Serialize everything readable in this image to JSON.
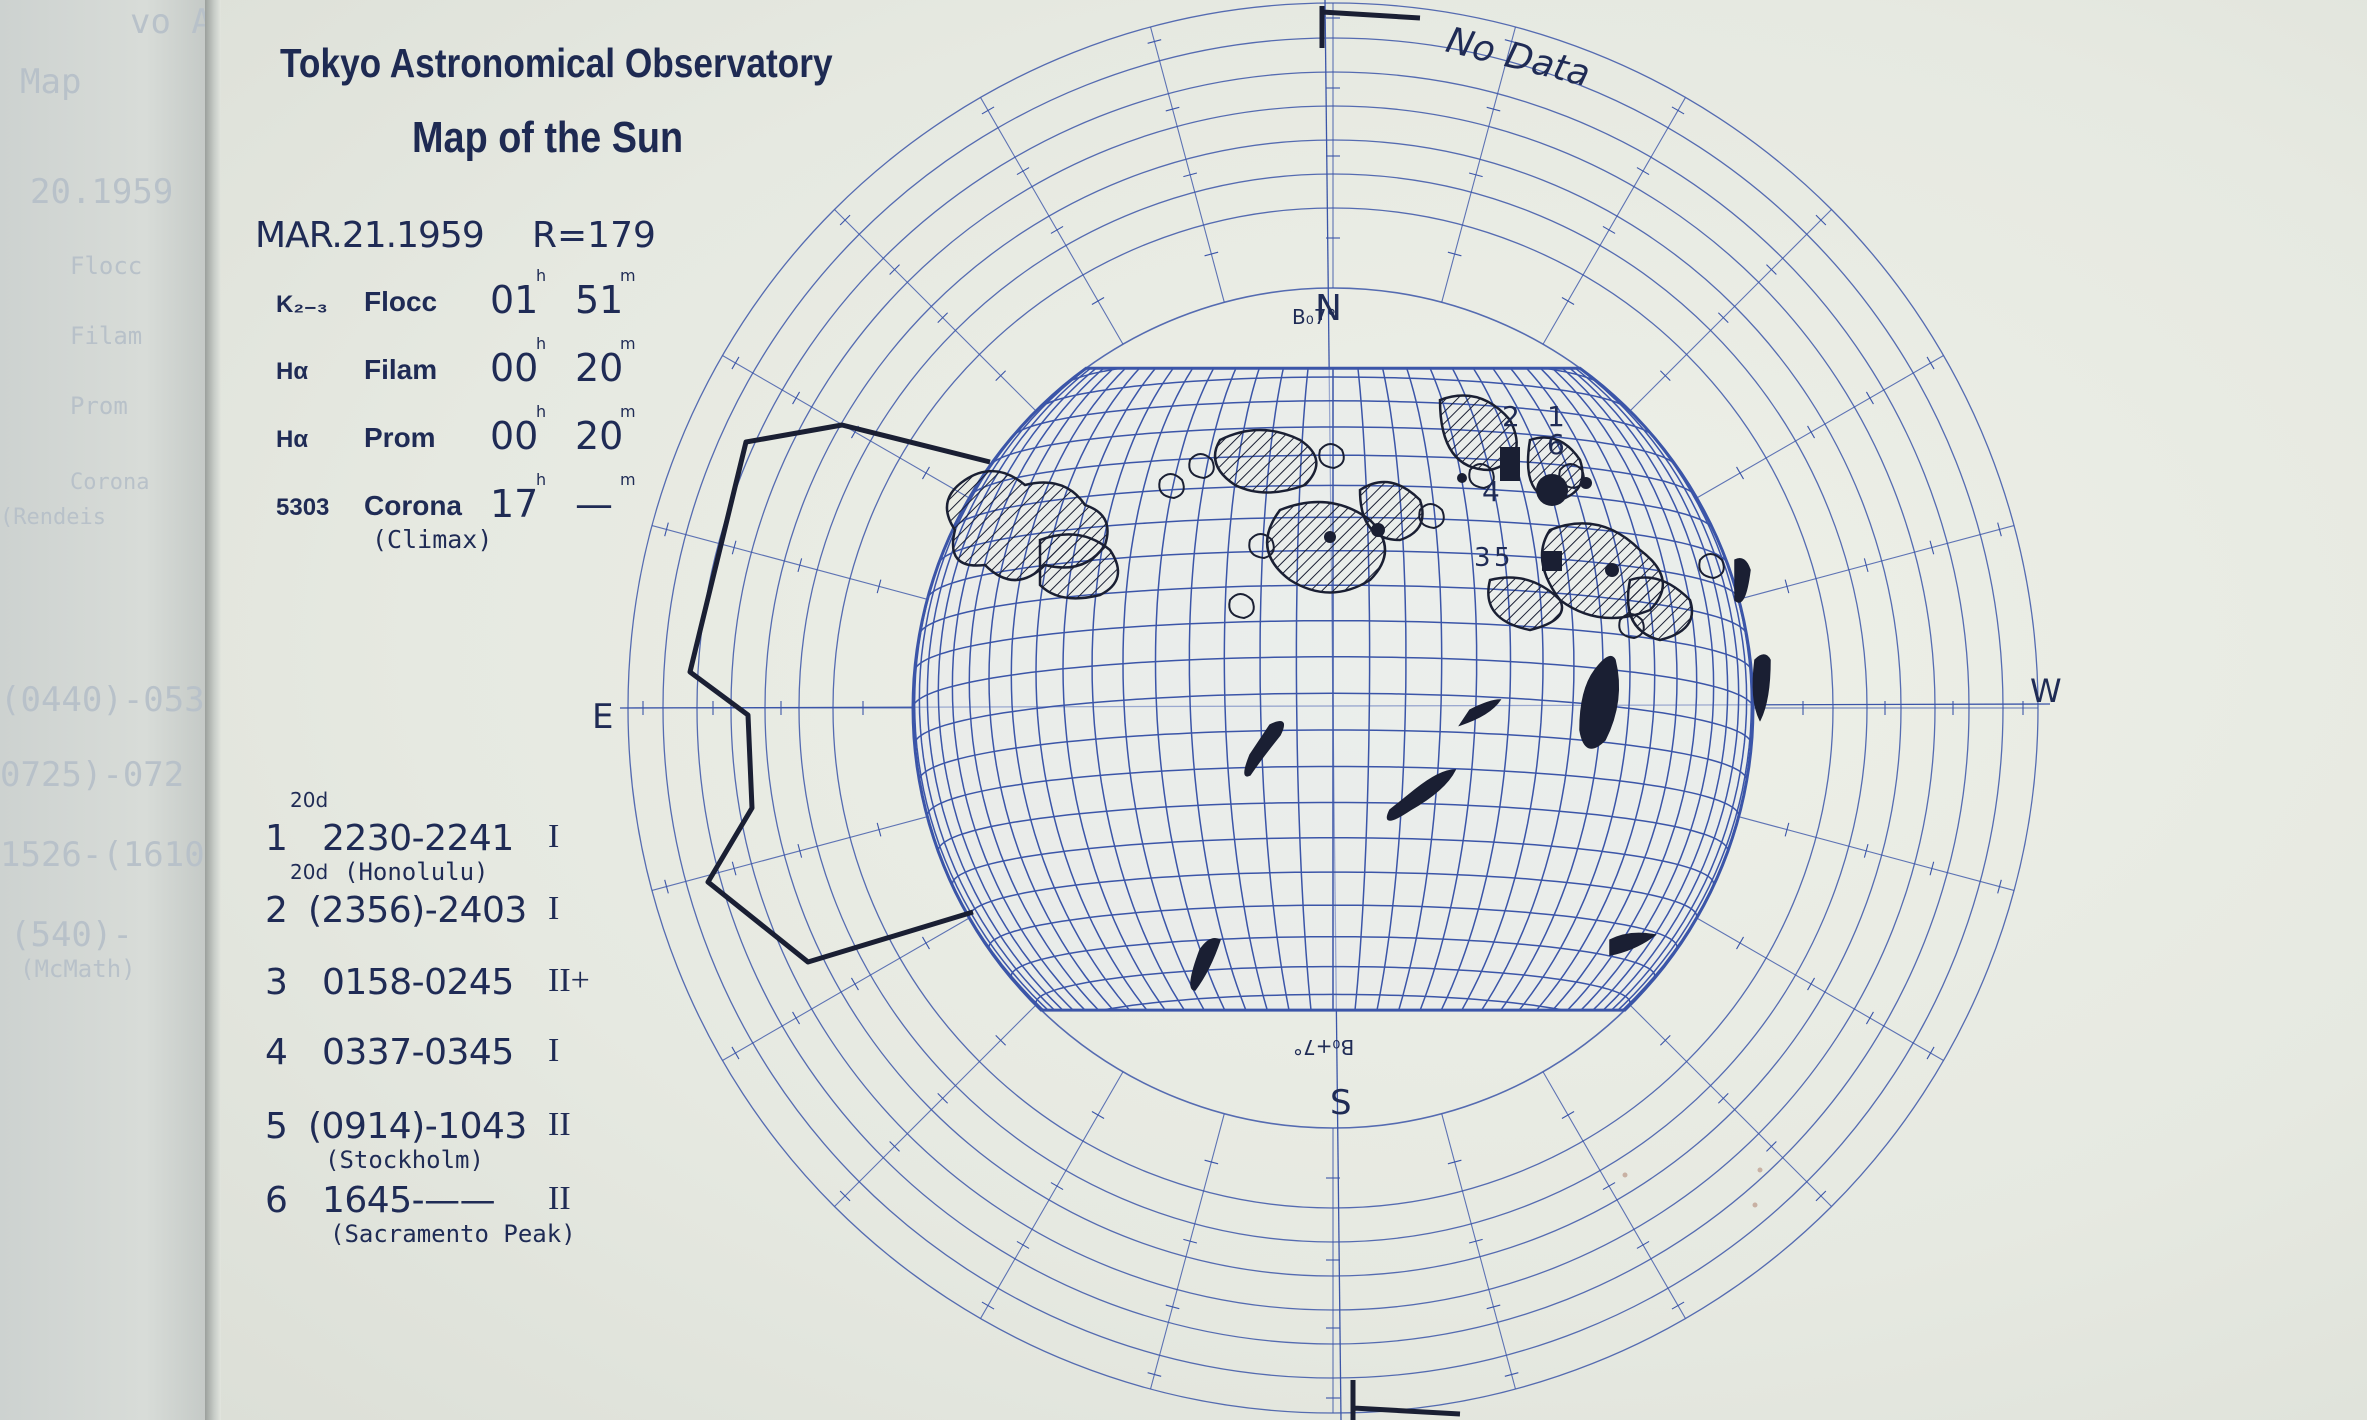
{
  "bleed_text": [
    "vo Astro",
    "Map",
    "20.1959",
    "Flocc",
    "Filam",
    "Prom",
    "Corona",
    "(Rendeis",
    "(0440)-053",
    "0725)-072",
    "1526-(1610",
    "(540)-",
    "(McMath)"
  ],
  "header": {
    "title_line1": "Tokyo Astronomical Observatory",
    "title_line2": "Map of the Sun"
  },
  "observation": {
    "date": "MAR.21.1959",
    "radius": "R=179",
    "rows": [
      {
        "line": "K₂₋₃",
        "kind": "Flocc",
        "h": "01",
        "m": "51"
      },
      {
        "line": "Hα",
        "kind": "Filam",
        "h": "00",
        "m": "20"
      },
      {
        "line": "Hα",
        "kind": "Prom",
        "h": "00",
        "m": "20"
      },
      {
        "line": "5303",
        "kind": "Corona",
        "h": "17",
        "m": "—"
      }
    ],
    "h_sup": "h",
    "m_sup": "m",
    "corona_note": "(Climax)"
  },
  "map_labels": {
    "north": "N",
    "north_b0": "B₀7°",
    "south": "S",
    "south_b0": "B₀+7°",
    "east": "E",
    "west": "W",
    "no_data": "No Data",
    "region_numbers": [
      "2",
      "1",
      "6",
      "4",
      "3",
      "5"
    ]
  },
  "flares": [
    {
      "num": "1",
      "day": "20d",
      "time": "2230-2241",
      "imp": "I",
      "note": "(Honolulu)"
    },
    {
      "num": "2",
      "day": "20d",
      "time": "(2356)-2403",
      "imp": "I",
      "note": ""
    },
    {
      "num": "3",
      "day": "",
      "time": "0158-0245",
      "imp": "II+",
      "note": ""
    },
    {
      "num": "4",
      "day": "",
      "time": "0337-0345",
      "imp": "I",
      "note": ""
    },
    {
      "num": "5",
      "day": "",
      "time": "(0914)-1043",
      "imp": "II",
      "note": "(Stockholm)"
    },
    {
      "num": "6",
      "day": "",
      "time": "1645-——",
      "imp": "II",
      "note": "(Sacramento Peak)"
    }
  ],
  "colors": {
    "ink": "#1f2b55",
    "grid": "#3b55a8",
    "paper": "#e6e9e1"
  }
}
